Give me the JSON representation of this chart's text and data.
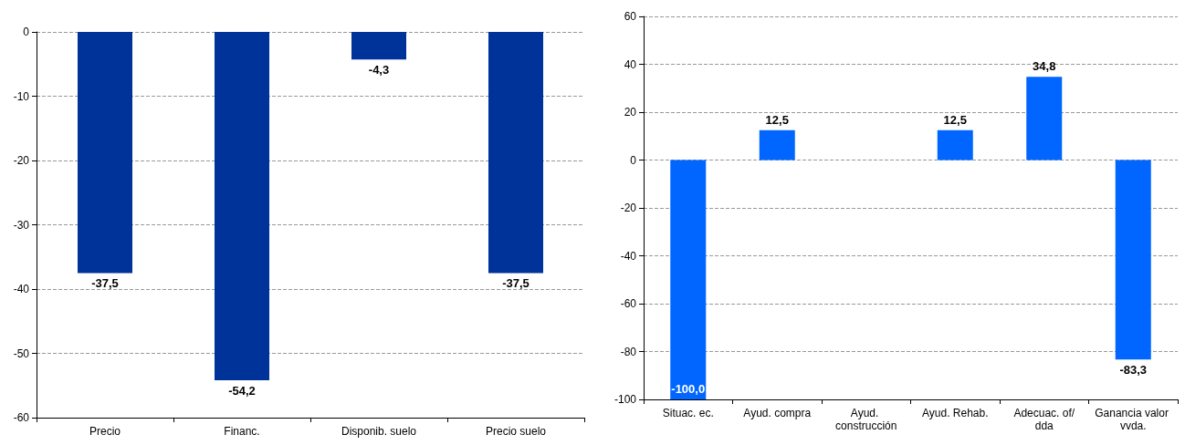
{
  "chart_data": [
    {
      "type": "bar",
      "categories": [
        "Precio",
        "Financ.",
        "Disponib. suelo",
        "Precio suelo"
      ],
      "series": [
        {
          "color": "#003399",
          "values": [
            -37.5,
            -54.2,
            -4.3,
            -37.5
          ],
          "value_labels": [
            "-37,5",
            "-54,2",
            "-4,3",
            "-37,5"
          ]
        }
      ],
      "ylim": [
        -60,
        0
      ],
      "yticks": [
        -60,
        -50,
        -40,
        -30,
        -20,
        -10,
        0
      ],
      "grid": "y"
    },
    {
      "type": "bar",
      "categories": [
        "Situac. ec.",
        "Ayud. compra",
        "Ayud. construcción",
        "Ayud. Rehab.",
        "Adecuac. of/dda",
        "Ganancia valor vvda."
      ],
      "series": [
        {
          "color": "#0066ff",
          "values": [
            -100,
            12.5,
            0,
            12.5,
            34.8,
            -83.3
          ],
          "value_labels": [
            "-100,0",
            "12,5",
            null,
            "12,5",
            "34,8",
            "-83,3"
          ]
        }
      ],
      "ylim": [
        -100,
        60
      ],
      "yticks": [
        -100,
        -80,
        -60,
        -40,
        -20,
        0,
        20,
        40,
        60
      ],
      "grid": "y"
    }
  ]
}
